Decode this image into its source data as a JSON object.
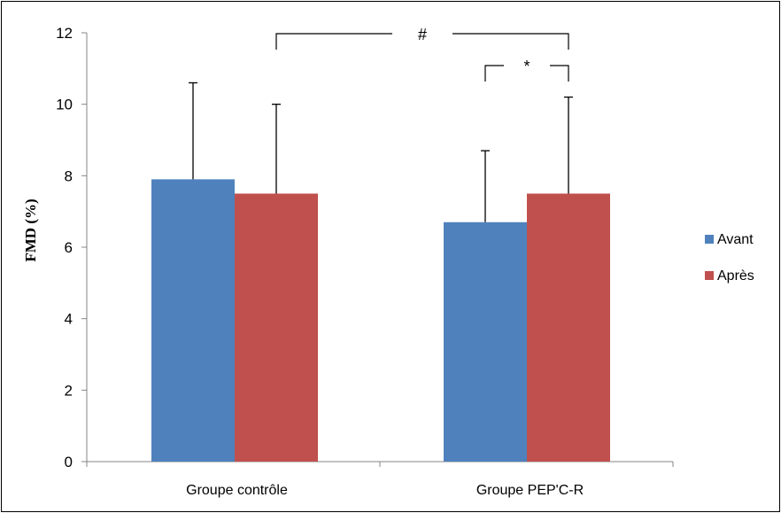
{
  "chart_data": {
    "type": "bar",
    "categories": [
      "Groupe contrôle",
      "Groupe PEP'C-R"
    ],
    "series": [
      {
        "name": "Avant",
        "color": "#4F81BD",
        "values": [
          7.9,
          6.7
        ],
        "error_plus": [
          2.7,
          2.0
        ]
      },
      {
        "name": "Après",
        "color": "#C0504D",
        "values": [
          7.5,
          7.5
        ],
        "error_plus": [
          2.5,
          2.7
        ]
      }
    ],
    "title": "",
    "xlabel": "",
    "ylabel": "FMD (%)",
    "ylim": [
      0,
      12
    ],
    "yticks": [
      "0",
      "2",
      "4",
      "6",
      "8",
      "10",
      "12"
    ],
    "grid": false,
    "legend_position": "right",
    "annotations": [
      {
        "label": "#",
        "from": {
          "series": "Après",
          "category": "Groupe contrôle"
        },
        "to": {
          "series": "Après",
          "category": "Groupe PEP'C-R"
        }
      },
      {
        "label": "*",
        "from": {
          "series": "Avant",
          "category": "Groupe PEP'C-R"
        },
        "to": {
          "series": "Après",
          "category": "Groupe PEP'C-R"
        }
      }
    ]
  }
}
